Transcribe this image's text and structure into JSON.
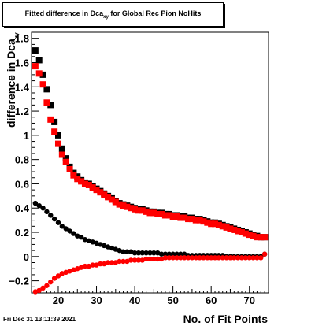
{
  "chart_data": {
    "type": "scatter",
    "title_main": "Fitted difference in Dca",
    "title_sub": "xy",
    "title_rest": " for Global Rec Pion NoHits",
    "xlabel": "No. of Fit Points",
    "ylabel_main": "difference in Dca",
    "ylabel_sub": "xy",
    "xlim": [
      13,
      75
    ],
    "ylim": [
      -0.3,
      1.85
    ],
    "xticks": [
      20,
      30,
      40,
      50,
      60,
      70
    ],
    "yticks": [
      -0.2,
      0,
      0.2,
      0.4,
      0.6,
      0.8,
      1,
      1.2,
      1.4,
      1.6,
      1.8
    ],
    "ytick_labels": [
      "−0.2",
      "0",
      "0.2",
      "0.4",
      "0.6",
      "0.8",
      "1",
      "1.2",
      "1.4",
      "1.6",
      "1.8"
    ],
    "grid": false,
    "series": [
      {
        "color": "#000000",
        "marker": "square",
        "x": [
          14,
          15,
          16,
          17,
          18,
          19,
          20,
          21,
          22,
          23,
          24,
          25,
          26,
          27,
          28,
          29,
          30,
          31,
          32,
          33,
          34,
          35,
          36,
          37,
          38,
          39,
          40,
          41,
          42,
          43,
          44,
          45,
          46,
          47,
          48,
          49,
          50,
          51,
          52,
          53,
          54,
          55,
          56,
          57,
          58,
          59,
          60,
          61,
          62,
          63,
          64,
          65,
          66,
          67,
          68,
          69,
          70,
          71,
          72,
          73,
          74
        ],
        "y": [
          1.7,
          1.62,
          1.5,
          1.38,
          1.25,
          1.11,
          1.0,
          0.89,
          0.81,
          0.74,
          0.69,
          0.66,
          0.63,
          0.61,
          0.6,
          0.58,
          0.56,
          0.54,
          0.52,
          0.5,
          0.48,
          0.46,
          0.44,
          0.43,
          0.42,
          0.41,
          0.4,
          0.39,
          0.39,
          0.38,
          0.37,
          0.37,
          0.36,
          0.36,
          0.35,
          0.35,
          0.34,
          0.34,
          0.33,
          0.33,
          0.32,
          0.32,
          0.31,
          0.31,
          0.3,
          0.29,
          0.28,
          0.28,
          0.27,
          0.26,
          0.25,
          0.24,
          0.23,
          0.22,
          0.21,
          0.2,
          0.19,
          0.18,
          0.17,
          0.16,
          0.16
        ]
      },
      {
        "color": "#ff0000",
        "marker": "square",
        "x": [
          14,
          15,
          16,
          17,
          18,
          19,
          20,
          21,
          22,
          23,
          24,
          25,
          26,
          27,
          28,
          29,
          30,
          31,
          32,
          33,
          34,
          35,
          36,
          37,
          38,
          39,
          40,
          41,
          42,
          43,
          44,
          45,
          46,
          47,
          48,
          49,
          50,
          51,
          52,
          53,
          54,
          55,
          56,
          57,
          58,
          59,
          60,
          61,
          62,
          63,
          64,
          65,
          66,
          67,
          68,
          69,
          70,
          71,
          72,
          73,
          74
        ],
        "y": [
          1.57,
          1.51,
          1.42,
          1.27,
          1.13,
          1.03,
          0.93,
          0.84,
          0.78,
          0.72,
          0.67,
          0.64,
          0.62,
          0.6,
          0.59,
          0.57,
          0.55,
          0.53,
          0.51,
          0.49,
          0.47,
          0.45,
          0.43,
          0.42,
          0.41,
          0.4,
          0.39,
          0.38,
          0.38,
          0.37,
          0.36,
          0.36,
          0.35,
          0.35,
          0.34,
          0.34,
          0.33,
          0.33,
          0.32,
          0.32,
          0.31,
          0.31,
          0.3,
          0.3,
          0.29,
          0.28,
          0.27,
          0.27,
          0.26,
          0.25,
          0.24,
          0.23,
          0.22,
          0.21,
          0.2,
          0.19,
          0.18,
          0.17,
          0.16,
          0.16,
          0.16
        ]
      },
      {
        "color": "#000000",
        "marker": "circle",
        "x": [
          14,
          15,
          16,
          17,
          18,
          19,
          20,
          21,
          22,
          23,
          24,
          25,
          26,
          27,
          28,
          29,
          30,
          31,
          32,
          33,
          34,
          35,
          36,
          37,
          38,
          39,
          40,
          41,
          42,
          43,
          44,
          45,
          46,
          47,
          48,
          49,
          50,
          51,
          52,
          53,
          54,
          55,
          56,
          57,
          58,
          59,
          60,
          61,
          62,
          63,
          64,
          65,
          66,
          67,
          68,
          69,
          70,
          71,
          72,
          73,
          74
        ],
        "y": [
          0.44,
          0.42,
          0.4,
          0.37,
          0.34,
          0.31,
          0.28,
          0.25,
          0.23,
          0.21,
          0.19,
          0.17,
          0.16,
          0.14,
          0.13,
          0.12,
          0.11,
          0.1,
          0.09,
          0.08,
          0.07,
          0.06,
          0.05,
          0.04,
          0.04,
          0.04,
          0.03,
          0.03,
          0.03,
          0.03,
          0.03,
          0.03,
          0.03,
          0.02,
          0.02,
          0.02,
          0.02,
          0.02,
          0.02,
          0.02,
          0.01,
          0.01,
          0.01,
          0.01,
          0.01,
          0.01,
          0.01,
          0.01,
          0.01,
          0.01,
          0.0,
          0.0,
          0.0,
          0.0,
          0.0,
          0.0,
          0.0,
          0.0,
          0.0,
          0.0,
          0.02
        ]
      },
      {
        "color": "#ff0000",
        "marker": "circle",
        "x": [
          14,
          15,
          16,
          17,
          18,
          19,
          20,
          21,
          22,
          23,
          24,
          25,
          26,
          27,
          28,
          29,
          30,
          31,
          32,
          33,
          34,
          35,
          36,
          37,
          38,
          39,
          40,
          41,
          42,
          43,
          44,
          45,
          46,
          47,
          48,
          49,
          50,
          51,
          52,
          53,
          54,
          55,
          56,
          57,
          58,
          59,
          60,
          61,
          62,
          63,
          64,
          65,
          66,
          67,
          68,
          69,
          70,
          71,
          72,
          73,
          74
        ],
        "y": [
          -0.29,
          -0.28,
          -0.26,
          -0.24,
          -0.21,
          -0.18,
          -0.16,
          -0.14,
          -0.13,
          -0.12,
          -0.11,
          -0.1,
          -0.09,
          -0.08,
          -0.08,
          -0.07,
          -0.07,
          -0.06,
          -0.06,
          -0.05,
          -0.05,
          -0.05,
          -0.04,
          -0.04,
          -0.04,
          -0.03,
          -0.03,
          -0.03,
          -0.03,
          -0.02,
          -0.02,
          -0.02,
          -0.02,
          -0.02,
          -0.01,
          -0.01,
          -0.01,
          -0.01,
          -0.01,
          -0.01,
          -0.01,
          -0.01,
          -0.01,
          -0.01,
          -0.01,
          -0.01,
          -0.01,
          -0.01,
          -0.01,
          -0.01,
          -0.01,
          -0.01,
          -0.01,
          -0.01,
          -0.01,
          -0.01,
          -0.01,
          -0.01,
          -0.01,
          -0.01,
          0.02
        ]
      }
    ]
  },
  "footer": {
    "date": "Fri Dec 31 13:11:39 2021"
  }
}
